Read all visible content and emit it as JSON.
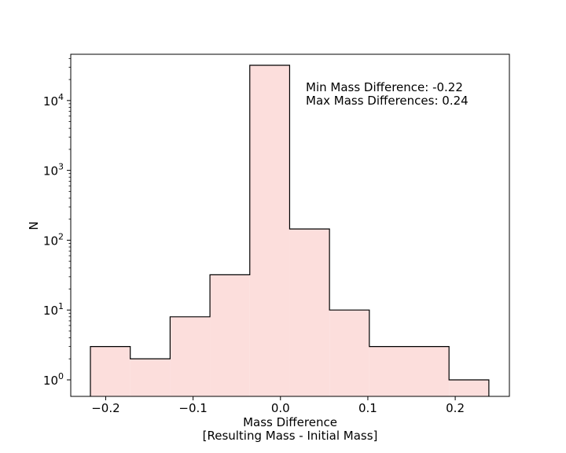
{
  "chart_data": {
    "type": "bar",
    "histogram": true,
    "bin_edges": [
      -0.2175,
      -0.1719,
      -0.1263,
      -0.0807,
      -0.0351,
      0.0105,
      0.0561,
      0.1017,
      0.1473,
      0.1929,
      0.2385
    ],
    "counts": [
      3,
      2,
      8,
      32,
      32000,
      145,
      10,
      3,
      3,
      1
    ],
    "xlabel": "Mass Difference",
    "xlabel_line2": "[Resulting Mass - Initial Mass]",
    "ylabel": "N",
    "xlim": [
      -0.24,
      0.262
    ],
    "ylim": [
      0.58,
      46000
    ],
    "yscale": "log",
    "x_ticks": [
      -0.2,
      -0.1,
      0.0,
      0.1,
      0.2
    ],
    "x_tick_labels": [
      "−0.2",
      "−0.1",
      "0.0",
      "0.1",
      "0.2"
    ],
    "y_ticks": [
      1,
      10,
      100,
      1000,
      10000
    ],
    "y_tick_bases": [
      "10",
      "10",
      "10",
      "10",
      "10"
    ],
    "y_tick_exponents": [
      "0",
      "1",
      "2",
      "3",
      "4"
    ],
    "annotations": [
      "Min Mass Difference: -0.22",
      "Max Mass Differences: 0.24"
    ],
    "grid": false,
    "fill_color": "#fcdedc",
    "edge_color": "#000000"
  }
}
